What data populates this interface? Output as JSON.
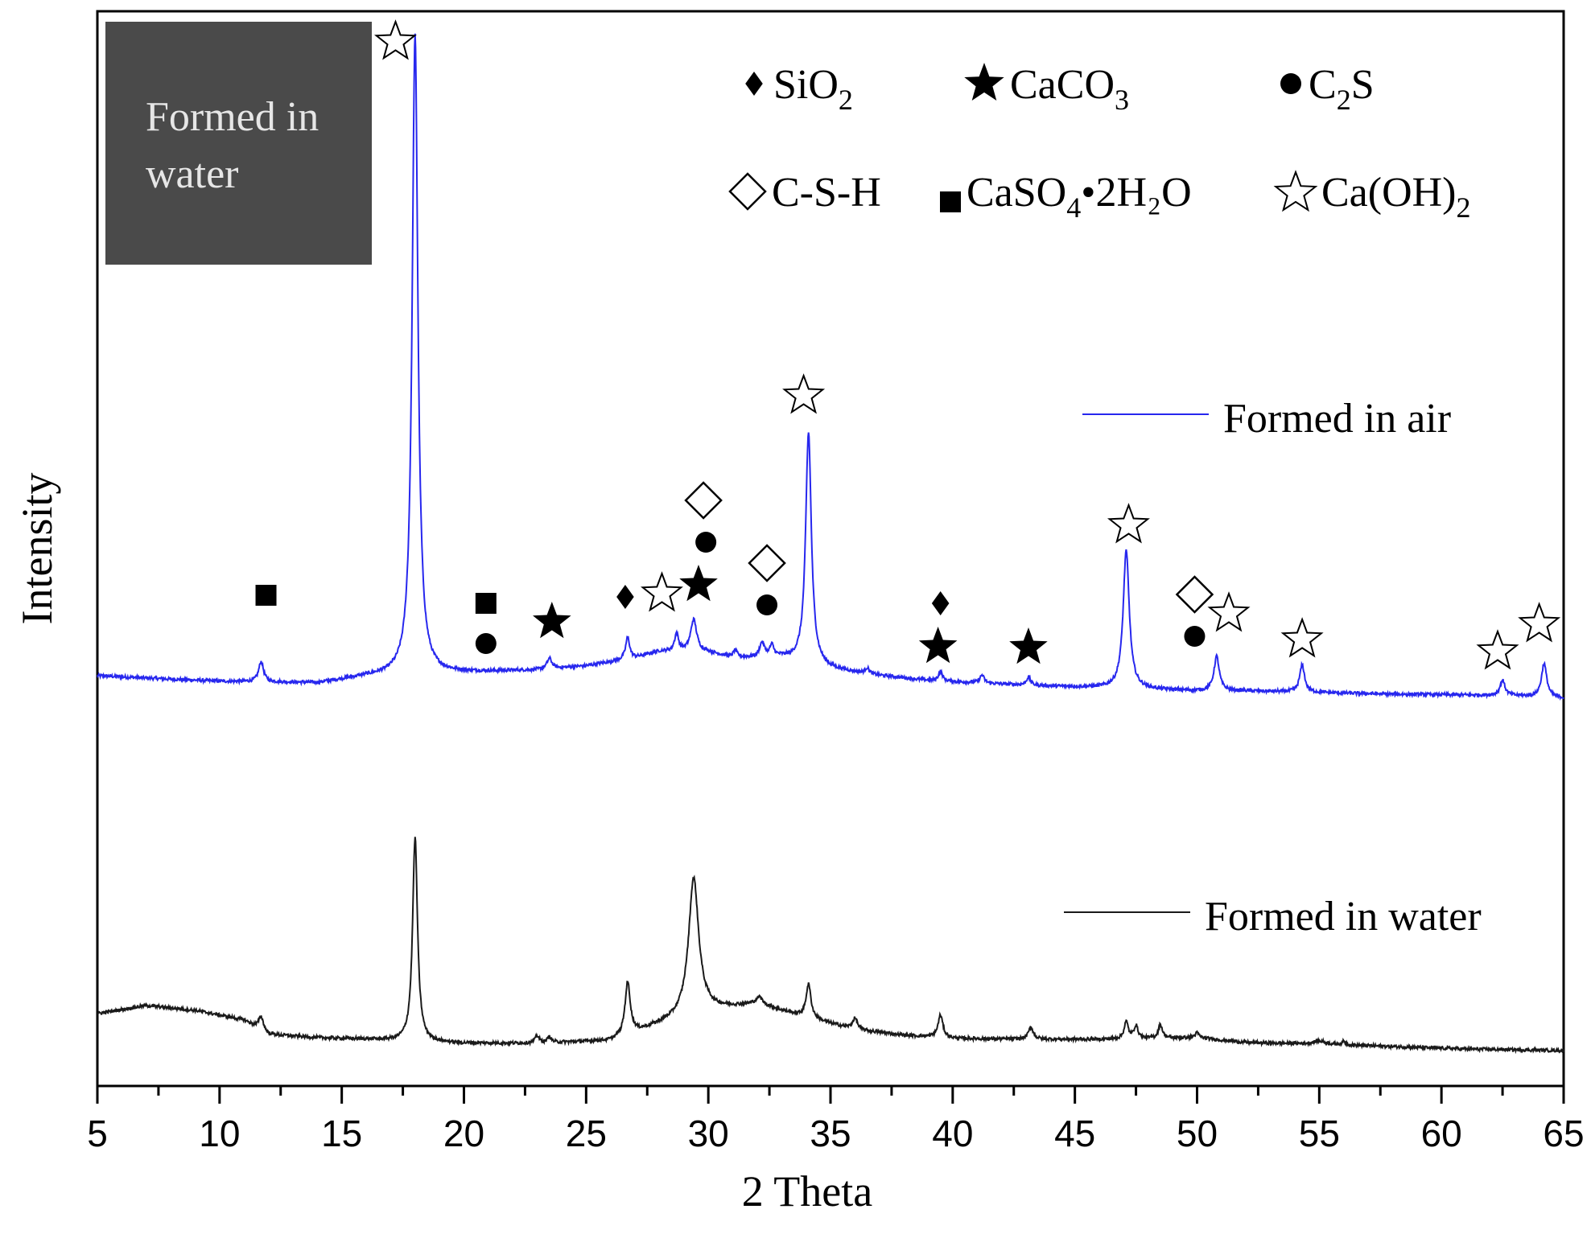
{
  "chart_data": {
    "type": "line",
    "xlabel": "2 Theta",
    "ylabel": "Intensity",
    "xlim": [
      5,
      65
    ],
    "x_ticks": [
      "5",
      "10",
      "15",
      "20",
      "25",
      "30",
      "35",
      "40",
      "45",
      "50",
      "55",
      "60",
      "65"
    ],
    "inset": {
      "line1": "Formed in",
      "line2": "water",
      "color": "#4a4a4a"
    },
    "series": [
      {
        "name": "Formed in air",
        "color": "#2727ee",
        "baseline": [
          [
            5,
            -28
          ],
          [
            7,
            -31
          ],
          [
            10,
            -35
          ],
          [
            14,
            -37
          ],
          [
            16,
            -29
          ],
          [
            18,
            -26
          ],
          [
            20,
            -24
          ],
          [
            23,
            -21
          ],
          [
            25,
            -16
          ],
          [
            27,
            -6
          ],
          [
            28,
            2
          ],
          [
            30,
            1
          ],
          [
            31,
            -6
          ],
          [
            33,
            -6
          ],
          [
            35,
            -20
          ],
          [
            37,
            -28
          ],
          [
            39,
            -34
          ],
          [
            41,
            -37
          ],
          [
            43,
            -40
          ],
          [
            45,
            -42
          ],
          [
            47,
            -44
          ],
          [
            50,
            -47
          ],
          [
            52,
            -47
          ],
          [
            55,
            -49
          ],
          [
            58,
            -51
          ],
          [
            61,
            -52
          ],
          [
            63,
            -53
          ],
          [
            65,
            -56
          ]
        ],
        "peaks": [
          {
            "x": 11.7,
            "h": 25,
            "w": 0.12
          },
          {
            "x": 18.0,
            "h": 795,
            "w": 0.14
          },
          {
            "x": 23.5,
            "h": 13,
            "w": 0.12
          },
          {
            "x": 26.7,
            "h": 27,
            "w": 0.1
          },
          {
            "x": 28.7,
            "h": 22,
            "w": 0.1
          },
          {
            "x": 29.4,
            "h": 40,
            "w": 0.15
          },
          {
            "x": 31.1,
            "h": 9,
            "w": 0.1
          },
          {
            "x": 32.2,
            "h": 18,
            "w": 0.12
          },
          {
            "x": 32.6,
            "h": 14,
            "w": 0.1
          },
          {
            "x": 34.1,
            "h": 288,
            "w": 0.14
          },
          {
            "x": 36.5,
            "h": 7,
            "w": 0.1
          },
          {
            "x": 39.5,
            "h": 12,
            "w": 0.1
          },
          {
            "x": 41.2,
            "h": 10,
            "w": 0.1
          },
          {
            "x": 43.1,
            "h": 10,
            "w": 0.1
          },
          {
            "x": 47.1,
            "h": 171,
            "w": 0.15
          },
          {
            "x": 50.8,
            "h": 43,
            "w": 0.13
          },
          {
            "x": 54.3,
            "h": 34,
            "w": 0.12
          },
          {
            "x": 62.5,
            "h": 19,
            "w": 0.12
          },
          {
            "x": 64.2,
            "h": 42,
            "w": 0.13
          }
        ]
      },
      {
        "name": "Formed in water",
        "color": "#1a1a1a",
        "baseline": [
          [
            5,
            -32
          ],
          [
            6,
            -27
          ],
          [
            7,
            -22
          ],
          [
            9,
            -28
          ],
          [
            11,
            -40
          ],
          [
            12,
            -58
          ],
          [
            14,
            -62
          ],
          [
            16,
            -64
          ],
          [
            18,
            -67
          ],
          [
            20,
            -69
          ],
          [
            23,
            -69
          ],
          [
            26,
            -66
          ],
          [
            28,
            -46
          ],
          [
            30,
            -28
          ],
          [
            32,
            -20
          ],
          [
            34,
            -37
          ],
          [
            36,
            -52
          ],
          [
            38,
            -59
          ],
          [
            40,
            -63
          ],
          [
            43,
            -64
          ],
          [
            46,
            -64
          ],
          [
            48,
            -63
          ],
          [
            50,
            -62
          ],
          [
            52,
            -68
          ],
          [
            55,
            -70
          ],
          [
            58,
            -73
          ],
          [
            61,
            -76
          ],
          [
            65,
            -78
          ]
        ],
        "peaks": [
          {
            "x": 11.7,
            "h": 17,
            "w": 0.12
          },
          {
            "x": 18.0,
            "h": 254,
            "w": 0.12
          },
          {
            "x": 23.0,
            "h": 9,
            "w": 0.1
          },
          {
            "x": 23.5,
            "h": 7,
            "w": 0.1
          },
          {
            "x": 26.7,
            "h": 65,
            "w": 0.13
          },
          {
            "x": 29.4,
            "h": 170,
            "w": 0.25
          },
          {
            "x": 32.1,
            "h": 8,
            "w": 0.15
          },
          {
            "x": 34.1,
            "h": 42,
            "w": 0.12
          },
          {
            "x": 36.0,
            "h": 14,
            "w": 0.12
          },
          {
            "x": 39.5,
            "h": 28,
            "w": 0.12
          },
          {
            "x": 43.2,
            "h": 15,
            "w": 0.12
          },
          {
            "x": 47.1,
            "h": 21,
            "w": 0.1
          },
          {
            "x": 47.5,
            "h": 16,
            "w": 0.1
          },
          {
            "x": 48.5,
            "h": 17,
            "w": 0.1
          },
          {
            "x": 50.0,
            "h": 6,
            "w": 0.1
          },
          {
            "x": 55.0,
            "h": 4,
            "w": 0.3
          },
          {
            "x": 56.0,
            "h": 4,
            "w": 0.1
          }
        ]
      }
    ],
    "legend_phases": [
      {
        "marker": "diamond-filled",
        "label": "SiO",
        "sub": "2",
        "after": ""
      },
      {
        "marker": "star-filled",
        "label": "CaCO",
        "sub": "3",
        "after": ""
      },
      {
        "marker": "circle-filled",
        "label": "C",
        "sub": "2",
        "after": "S"
      },
      {
        "marker": "diamond-open",
        "label": "C-S-H",
        "sub": "",
        "after": ""
      },
      {
        "marker": "square-filled",
        "label": "CaSO",
        "sub": "4",
        "after": "•2H₂O"
      },
      {
        "marker": "star-open",
        "label": "Ca(OH)",
        "sub": "2",
        "after": ""
      }
    ],
    "annotations": [
      {
        "phase": "CaSO4·2H2O",
        "marker": "square-filled",
        "x": 11.9
      },
      {
        "phase": "Ca(OH)2",
        "marker": "star-open",
        "x": 17.2
      },
      {
        "phase": "CaSO4·2H2O",
        "marker": "square-filled",
        "x": 20.9
      },
      {
        "phase": "C2S",
        "marker": "circle-filled",
        "x": 20.9
      },
      {
        "phase": "CaCO3",
        "marker": "star-filled",
        "x": 23.6
      },
      {
        "phase": "SiO2",
        "marker": "diamond-filled",
        "x": 26.6
      },
      {
        "phase": "Ca(OH)2",
        "marker": "star-open",
        "x": 28.1
      },
      {
        "phase": "CaCO3",
        "marker": "star-filled",
        "x": 29.6
      },
      {
        "phase": "C2S",
        "marker": "circle-filled",
        "x": 29.9
      },
      {
        "phase": "C-S-H",
        "marker": "diamond-open",
        "x": 29.8
      },
      {
        "phase": "C2S",
        "marker": "circle-filled",
        "x": 32.4
      },
      {
        "phase": "C-S-H",
        "marker": "diamond-open",
        "x": 32.4
      },
      {
        "phase": "Ca(OH)2",
        "marker": "star-open",
        "x": 33.9
      },
      {
        "phase": "CaCO3",
        "marker": "star-filled",
        "x": 39.4
      },
      {
        "phase": "SiO2",
        "marker": "diamond-filled",
        "x": 39.5
      },
      {
        "phase": "CaCO3",
        "marker": "star-filled",
        "x": 43.1
      },
      {
        "phase": "Ca(OH)2",
        "marker": "star-open",
        "x": 47.2
      },
      {
        "phase": "C2S",
        "marker": "circle-filled",
        "x": 49.9
      },
      {
        "phase": "C-S-H",
        "marker": "diamond-open",
        "x": 49.9
      },
      {
        "phase": "Ca(OH)2",
        "marker": "star-open",
        "x": 51.3
      },
      {
        "phase": "Ca(OH)2",
        "marker": "star-open",
        "x": 54.3
      },
      {
        "phase": "Ca(OH)2",
        "marker": "star-open",
        "x": 62.3
      },
      {
        "phase": "Ca(OH)2",
        "marker": "star-open",
        "x": 64.0
      }
    ],
    "grid": false
  }
}
